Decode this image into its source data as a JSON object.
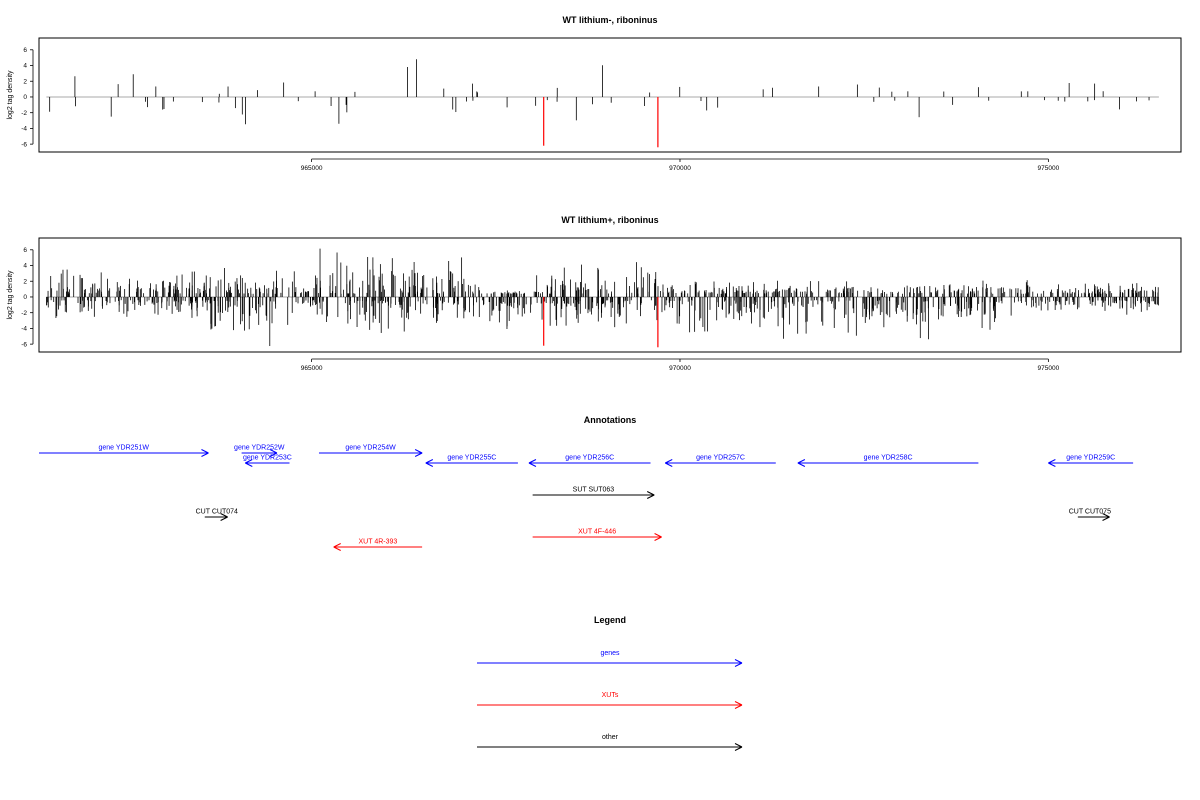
{
  "chart_data": {
    "type": "bar",
    "xlim": [
      961300,
      976800
    ],
    "ylim": [
      -7,
      7.5
    ],
    "x_ticks": [
      965000,
      970000,
      975000
    ],
    "y_ticks": [
      -6,
      -4,
      -2,
      0,
      2,
      4,
      6
    ],
    "ylabel": "log2 tag density",
    "colors": {
      "bars": "#000000",
      "baseline": "#aaaaaa",
      "highlight": "#ff0000",
      "genes": "#0000ff",
      "xuts": "#ff0000",
      "other": "#000000"
    },
    "panels": [
      {
        "title": "WT lithium-, riboninus",
        "density": "sparse",
        "highlights": [
          {
            "x": 968150,
            "y": -6.2
          },
          {
            "x": 969700,
            "y": -6.4
          }
        ]
      },
      {
        "title": "WT lithium+, riboninus",
        "density": "dense",
        "highlights": [
          {
            "x": 968150,
            "y": -6.2
          },
          {
            "x": 969700,
            "y": -6.4
          }
        ]
      }
    ],
    "annotations": {
      "title": "Annotations",
      "features": [
        {
          "label": "gene YDR251W",
          "class": "gene",
          "start": 961300,
          "end": 963600,
          "strand": "+",
          "row": 0
        },
        {
          "label": "gene YDR252W",
          "class": "gene",
          "start": 964050,
          "end": 964530,
          "strand": "+",
          "row": 0
        },
        {
          "label": "gene YDR253C",
          "class": "gene",
          "start": 964100,
          "end": 964700,
          "strand": "-",
          "row": 1
        },
        {
          "label": "gene YDR254W",
          "class": "gene",
          "start": 965100,
          "end": 966500,
          "strand": "+",
          "row": 0
        },
        {
          "label": "gene YDR255C",
          "class": "gene",
          "start": 966550,
          "end": 967800,
          "strand": "-",
          "row": 1
        },
        {
          "label": "gene YDR256C",
          "class": "gene",
          "start": 967950,
          "end": 969600,
          "strand": "-",
          "row": 1
        },
        {
          "label": "gene YDR257C",
          "class": "gene",
          "start": 969800,
          "end": 971300,
          "strand": "-",
          "row": 1
        },
        {
          "label": "gene YDR258C",
          "class": "gene",
          "start": 971600,
          "end": 974050,
          "strand": "-",
          "row": 1
        },
        {
          "label": "gene YDR259C",
          "class": "gene",
          "start": 975000,
          "end": 976150,
          "strand": "-",
          "row": 1
        },
        {
          "label": "SUT SUT063",
          "class": "other",
          "start": 968000,
          "end": 969650,
          "strand": "+",
          "row": 2
        },
        {
          "label": "CUT CUT074",
          "class": "other",
          "start": 963550,
          "end": 963860,
          "strand": "+",
          "row": 3
        },
        {
          "label": "CUT CUT075",
          "class": "other",
          "start": 975400,
          "end": 975830,
          "strand": "+",
          "row": 3
        },
        {
          "label": "XUT 4F-446",
          "class": "xut",
          "start": 968000,
          "end": 969750,
          "strand": "+",
          "row": 4
        },
        {
          "label": "XUT 4R-393",
          "class": "xut",
          "start": 965300,
          "end": 966500,
          "strand": "-",
          "row": 5
        }
      ]
    },
    "legend": {
      "title": "Legend",
      "entries": [
        {
          "label": "genes",
          "class": "gene"
        },
        {
          "label": "XUTs",
          "class": "xut"
        },
        {
          "label": "other",
          "class": "other"
        }
      ]
    }
  }
}
